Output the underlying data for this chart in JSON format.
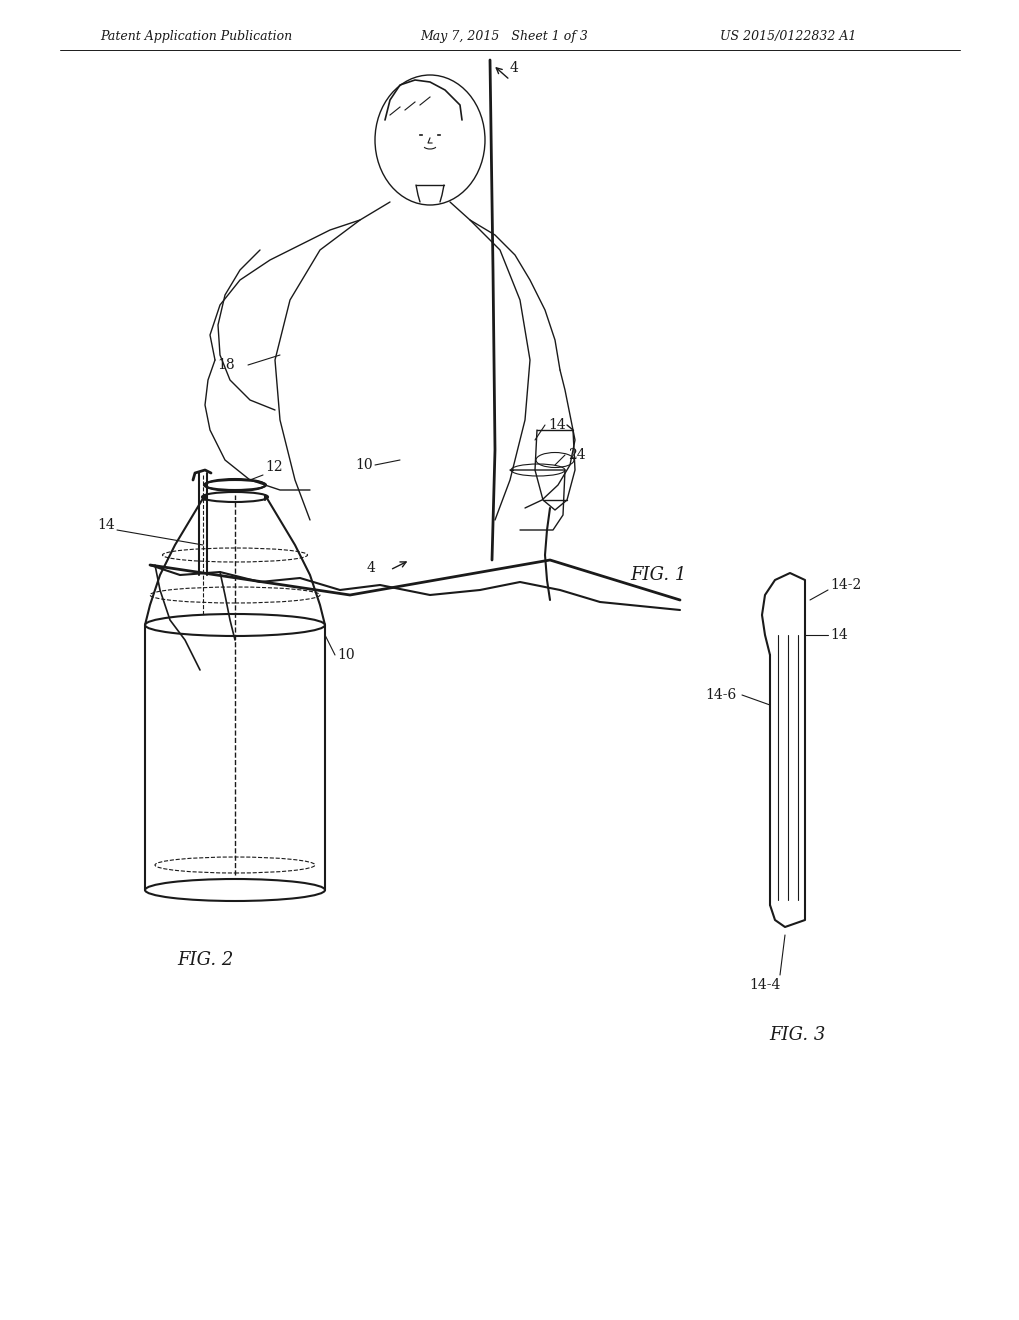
{
  "bg_color": "#ffffff",
  "line_color": "#1a1a1a",
  "header_left": "Patent Application Publication",
  "header_mid": "May 7, 2015   Sheet 1 of 3",
  "header_right": "US 2015/0122832 A1",
  "fig1_label": "FIG. 1",
  "fig2_label": "FIG. 2",
  "fig3_label": "FIG. 3",
  "header_font_size": 9,
  "fig_label_font_size": 13,
  "annotation_font_size": 10
}
